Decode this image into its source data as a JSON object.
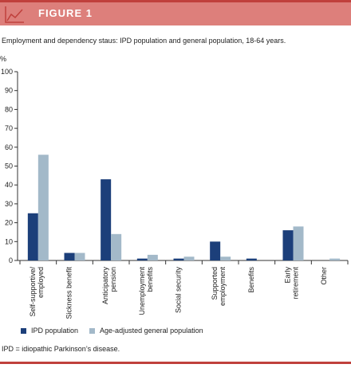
{
  "header": {
    "title": "FIGURE 1",
    "icon": "line-chart-icon"
  },
  "chart_data": {
    "type": "bar",
    "title": "Employment and dependency staus: IPD population and general population, 18-64 years.",
    "ylabel": "%",
    "xlabel": "",
    "ylim": [
      0,
      100
    ],
    "yticks": [
      0,
      10,
      20,
      30,
      40,
      50,
      60,
      70,
      80,
      90,
      100
    ],
    "grid": false,
    "legend_position": "bottom-left",
    "categories": [
      [
        "Self-supportive/",
        "employed"
      ],
      [
        "Sickness benefit"
      ],
      [
        "Anticipatory",
        "pension"
      ],
      [
        "Unemployment",
        "benefits"
      ],
      [
        "Social security"
      ],
      [
        "Supported",
        "employment"
      ],
      [
        "Benefits"
      ],
      [
        "Early",
        "retirement"
      ],
      [
        "Other"
      ]
    ],
    "series": [
      {
        "name": "IPD population",
        "color": "#1c3f7a",
        "values": [
          25,
          4,
          43,
          1,
          1,
          10,
          1,
          16,
          0
        ]
      },
      {
        "name": "Age-adjusted general population",
        "color": "#a3b9c9",
        "values": [
          56,
          4,
          14,
          3,
          2,
          2,
          0,
          18,
          1
        ]
      }
    ]
  },
  "footnote": "IPD = idiopathic Parkinson’s disease."
}
